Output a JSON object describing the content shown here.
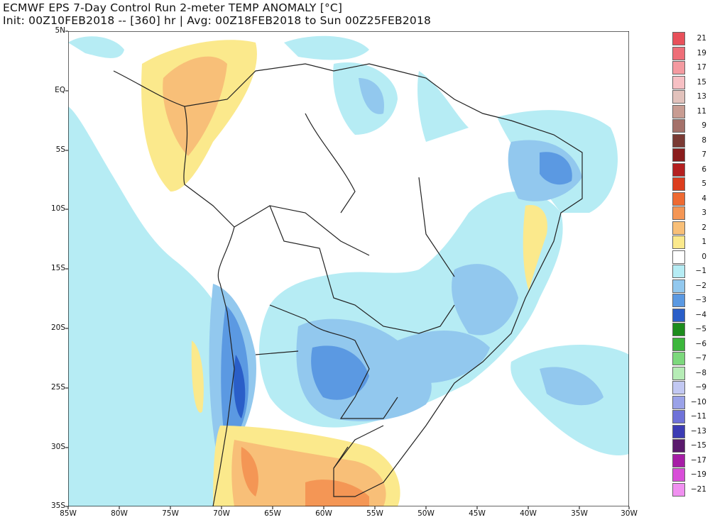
{
  "title": {
    "line1": "ECMWF EPS 7-Day Control Run 2-meter TEMP ANOMALY [°C]",
    "line2": "Init: 00Z10FEB2018 -- [360] hr | Avg: 00Z18FEB2018 to Sun 00Z25FEB2018"
  },
  "axes": {
    "lat_labels": [
      "5N",
      "EQ",
      "5S",
      "10S",
      "15S",
      "20S",
      "25S",
      "30S",
      "35S"
    ],
    "lon_labels": [
      "85W",
      "80W",
      "75W",
      "70W",
      "65W",
      "60W",
      "55W",
      "50W",
      "45W",
      "40W",
      "35W",
      "30W"
    ]
  },
  "legend": {
    "entries": [
      {
        "label": "21",
        "color": "#e8505a"
      },
      {
        "label": "19",
        "color": "#ee6e78"
      },
      {
        "label": "17",
        "color": "#f49aa0"
      },
      {
        "label": "15",
        "color": "#f7c0c4"
      },
      {
        "label": "13",
        "color": "#e2c2bc"
      },
      {
        "label": "11",
        "color": "#c89c92"
      },
      {
        "label": "9",
        "color": "#a4716a"
      },
      {
        "label": "8",
        "color": "#7a3a34"
      },
      {
        "label": "7",
        "color": "#8a1d1d"
      },
      {
        "label": "6",
        "color": "#b42020"
      },
      {
        "label": "5",
        "color": "#dc3d1e"
      },
      {
        "label": "4",
        "color": "#ee6a32"
      },
      {
        "label": "3",
        "color": "#f49655"
      },
      {
        "label": "2",
        "color": "#f8bf78"
      },
      {
        "label": "1",
        "color": "#fbe98c"
      },
      {
        "label": "0",
        "color": "#ffffff"
      },
      {
        "label": "−1",
        "color": "#b6ecf4"
      },
      {
        "label": "−2",
        "color": "#92c8ee"
      },
      {
        "label": "−3",
        "color": "#5b99e2"
      },
      {
        "label": "−4",
        "color": "#2a5ec8"
      },
      {
        "label": "−5",
        "color": "#1d8c1d"
      },
      {
        "label": "−6",
        "color": "#3cb63c"
      },
      {
        "label": "−7",
        "color": "#7cd87c"
      },
      {
        "label": "−8",
        "color": "#b6ecb6"
      },
      {
        "label": "−9",
        "color": "#c2c8f2"
      },
      {
        "label": "−10",
        "color": "#9aa2e8"
      },
      {
        "label": "−11",
        "color": "#6f72d8"
      },
      {
        "label": "−13",
        "color": "#3c3cb4"
      },
      {
        "label": "−15",
        "color": "#5a1a6c"
      },
      {
        "label": "−17",
        "color": "#a61ea6"
      },
      {
        "label": "−19",
        "color": "#d84ed8"
      },
      {
        "label": "−21",
        "color": "#f090f0"
      }
    ]
  },
  "colors": {
    "ocean_anomaly_weak": "#b6ecf4",
    "anomaly_moderate": "#92c8ee",
    "anomaly_strong": "#5b99e2",
    "anomaly_very_strong": "#2a5ec8",
    "warm_weak": "#fbe98c",
    "warm_moderate": "#f8bf78",
    "warm_strong": "#f49655",
    "border": "#222222"
  }
}
